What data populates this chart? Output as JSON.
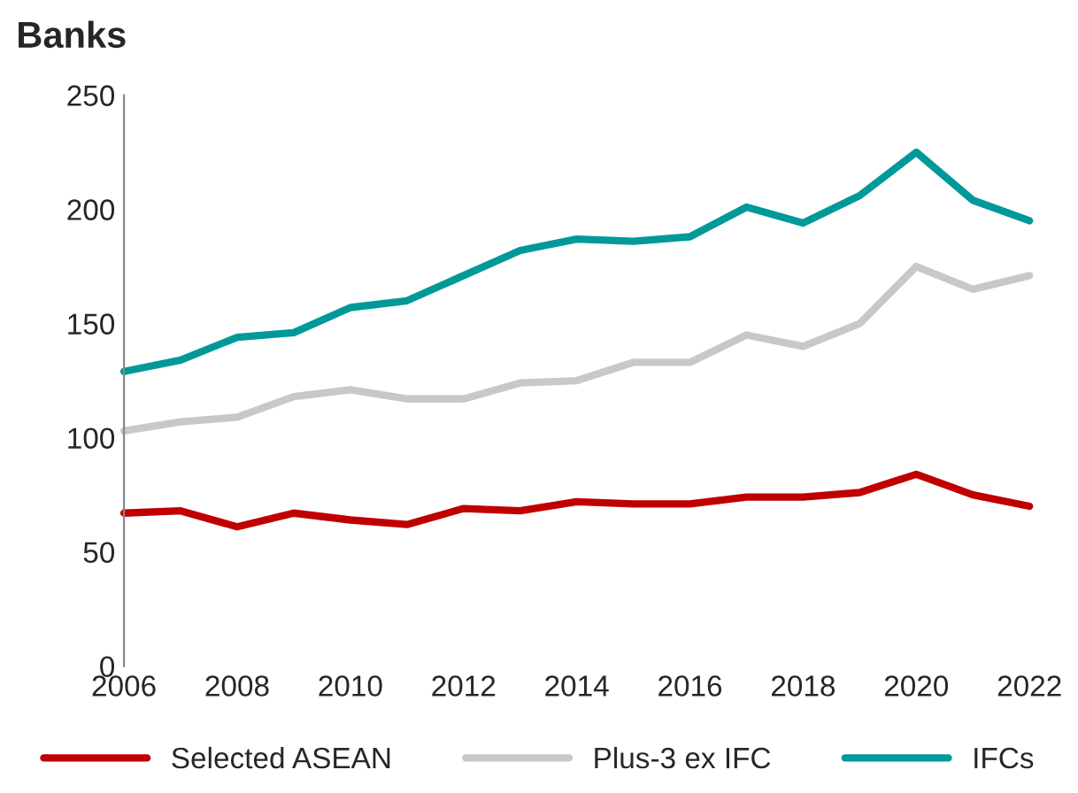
{
  "chart_data": {
    "type": "line",
    "title": "Banks",
    "x": [
      2006,
      2007,
      2008,
      2009,
      2010,
      2011,
      2012,
      2013,
      2014,
      2015,
      2016,
      2017,
      2018,
      2019,
      2020,
      2021,
      2022
    ],
    "series": [
      {
        "name": "Selected ASEAN",
        "color": "#c00000",
        "values": [
          67,
          68,
          61,
          67,
          64,
          62,
          69,
          68,
          72,
          71,
          71,
          74,
          74,
          76,
          84,
          75,
          70
        ]
      },
      {
        "name": "Plus-3 ex IFC",
        "color": "#c8c8c8",
        "values": [
          103,
          107,
          109,
          118,
          121,
          117,
          117,
          124,
          125,
          133,
          133,
          145,
          140,
          150,
          175,
          165,
          171
        ]
      },
      {
        "name": "IFCs",
        "color": "#009999",
        "values": [
          129,
          134,
          144,
          146,
          157,
          160,
          171,
          182,
          187,
          186,
          188,
          201,
          194,
          206,
          225,
          204,
          195
        ]
      }
    ],
    "xlim": [
      2006,
      2022
    ],
    "xticks": [
      2006,
      2008,
      2010,
      2012,
      2014,
      2016,
      2018,
      2020,
      2022
    ],
    "ylim": [
      0,
      250
    ],
    "yticks": [
      0,
      50,
      100,
      150,
      200,
      250
    ],
    "grid": false,
    "legend": "bottom",
    "line_style": "solid",
    "marker": "none"
  }
}
